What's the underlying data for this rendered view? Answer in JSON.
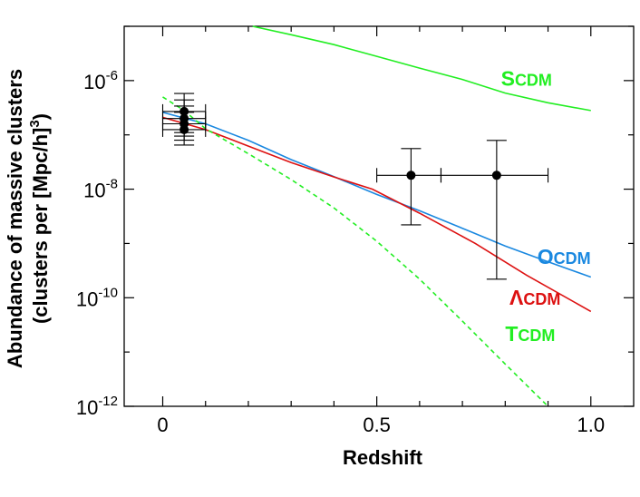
{
  "chart_data": {
    "type": "line",
    "xlabel": "Redshift",
    "ylabel_lines": [
      "Abundance of massive clusters",
      "(clusters per [Mpc/h]",
      "3",
      ")"
    ],
    "xlim": [
      -0.09,
      1.1
    ],
    "ylim": [
      1e-12,
      1e-05
    ],
    "yscale": "log",
    "x_ticks": [
      0,
      0.5,
      1.0
    ],
    "x_tick_labels": [
      "0",
      "0.5",
      "1.0"
    ],
    "y_ticks": [
      {
        "value": 1e-06,
        "base": "10",
        "exp": "-6"
      },
      {
        "value": 1e-08,
        "base": "10",
        "exp": "-8"
      },
      {
        "value": 1e-10,
        "base": "10",
        "exp": "-10"
      },
      {
        "value": 1e-12,
        "base": "10",
        "exp": "-12"
      }
    ],
    "series": [
      {
        "name": "SCDM",
        "color": "#22ee22",
        "dashed": false,
        "x": [
          0.21,
          0.3,
          0.4,
          0.5,
          0.6,
          0.7,
          0.8,
          0.9,
          1.0
        ],
        "y": [
          1e-05,
          7e-06,
          4.6e-06,
          2.8e-06,
          1.7e-06,
          1.05e-06,
          5.9e-07,
          3.9e-07,
          2.8e-07
        ]
      },
      {
        "name": "OCDM",
        "color": "#1a88e0",
        "dashed": false,
        "x": [
          0,
          0.1,
          0.2,
          0.3,
          0.4,
          0.5,
          0.6,
          0.7,
          0.8,
          0.9,
          1.0
        ],
        "y": [
          2.6e-07,
          1.6e-07,
          7.9e-08,
          3.5e-08,
          1.7e-08,
          8e-09,
          4e-09,
          1.9e-09,
          9e-10,
          4.6e-10,
          2.4e-10
        ]
      },
      {
        "name": "ΛCDM",
        "color": "#dd1111",
        "dashed": false,
        "x": [
          0,
          0.1,
          0.2,
          0.3,
          0.4,
          0.49,
          0.6,
          0.73,
          0.85,
          1.0
        ],
        "y": [
          2.1e-07,
          1.25e-07,
          6.2e-08,
          3.1e-08,
          1.68e-08,
          1e-08,
          3.6e-09,
          1e-09,
          2.6e-10,
          5.6e-11
        ]
      },
      {
        "name": "TCDM",
        "color": "#22ee22",
        "dashed": true,
        "x": [
          0,
          0.05,
          0.1,
          0.2,
          0.3,
          0.4,
          0.5,
          0.6,
          0.7,
          0.8,
          0.9
        ],
        "y": [
          5e-07,
          2.8e-07,
          1.3e-07,
          4.5e-08,
          1.5e-08,
          4.5e-09,
          1.1e-09,
          2.2e-10,
          3.7e-11,
          6e-12,
          1e-12
        ]
      }
    ],
    "labels": [
      {
        "series": "SCDM",
        "first": "S",
        "rest": "CDM",
        "color": "#22ee22",
        "x": 0.79,
        "y": 8e-07
      },
      {
        "series": "OCDM",
        "first": "O",
        "rest": "CDM",
        "color": "#1a88e0",
        "x": 0.875,
        "y": 4.2e-10
      },
      {
        "series": "ΛCDM",
        "first": "Λ",
        "rest": "CDM",
        "color": "#dd1111",
        "x": 0.81,
        "y": 7.5e-11
      },
      {
        "series": "TCDM",
        "first": "T",
        "rest": "CDM",
        "color": "#22ee22",
        "x": 0.8,
        "y": 1.6e-11
      }
    ],
    "data_points": [
      {
        "x": 0.05,
        "y": 2.7e-07,
        "yerr": [
          1.1e-07,
          5.8e-07
        ],
        "xerr": [
          0.0,
          0.1
        ]
      },
      {
        "x": 0.05,
        "y": 2e-07,
        "yerr": [
          9.5e-08,
          4.4e-07
        ],
        "xerr": [
          0.0,
          0.1
        ]
      },
      {
        "x": 0.05,
        "y": 1.6e-07,
        "yerr": [
          8e-08,
          3.4e-07
        ],
        "xerr": [
          0.0,
          0.1
        ]
      },
      {
        "x": 0.05,
        "y": 1.25e-07,
        "yerr": [
          6.5e-08,
          2.6e-07
        ],
        "xerr": [
          0.0,
          0.1
        ]
      },
      {
        "x": 0.58,
        "y": 1.8e-08,
        "yerr": [
          2.2e-09,
          5.6e-08
        ],
        "xerr": [
          0.5,
          0.65
        ]
      },
      {
        "x": 0.78,
        "y": 1.8e-08,
        "yerr": [
          2.2e-10,
          7.9e-08
        ],
        "xerr": [
          0.65,
          0.9
        ]
      }
    ],
    "grid": false
  }
}
